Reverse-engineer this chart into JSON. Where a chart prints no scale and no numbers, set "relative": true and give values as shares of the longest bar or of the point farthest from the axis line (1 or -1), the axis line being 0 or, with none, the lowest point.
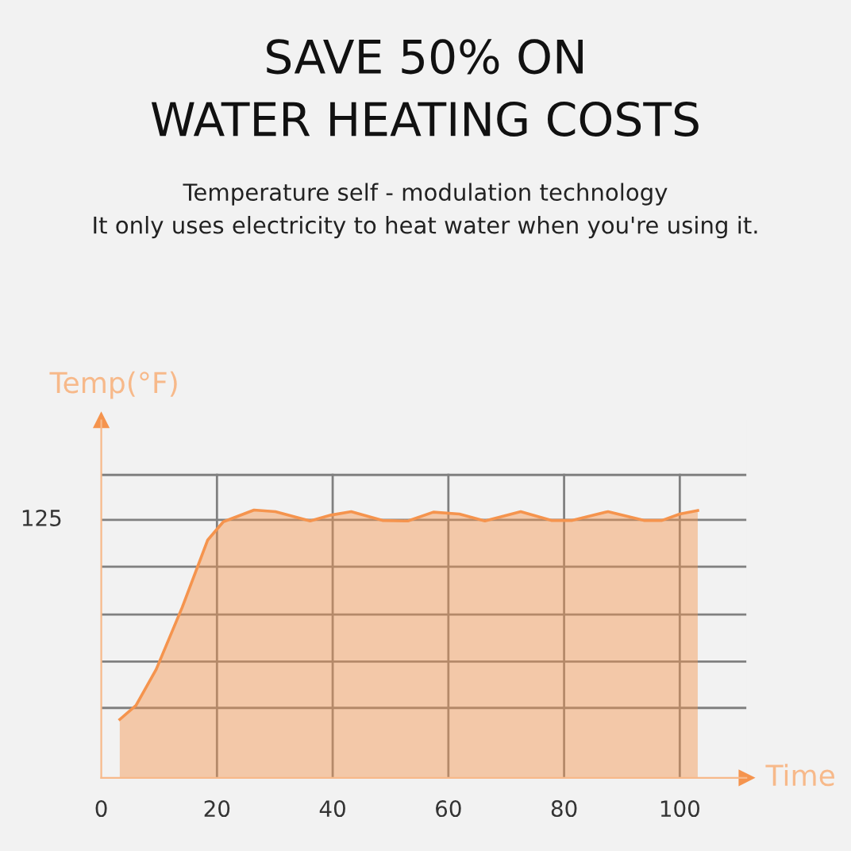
{
  "chart_data": {
    "type": "area",
    "relative": true,
    "title": "SAVE 50% ON\nWATER HEATING COSTS",
    "subtitle": "Temperature self - modulation technology\nIt only uses electricity to heat water when you're using it.",
    "xlabel": "Time",
    "ylabel": "Temp(°F)",
    "x": [
      3.2,
      6.0,
      9.5,
      14.0,
      18.4,
      21.1,
      26.4,
      30.1,
      36.1,
      39.7,
      43.2,
      48.6,
      53.0,
      57.4,
      61.9,
      66.3,
      72.5,
      77.8,
      81.4,
      87.6,
      93.8,
      96.9,
      100.0,
      103.1
    ],
    "series": [
      {
        "color": "#f5944e",
        "values": [
          0.218,
          0.27,
          0.405,
          0.637,
          0.888,
          0.956,
          1.0,
          0.994,
          0.959,
          0.981,
          0.994,
          0.961,
          0.959,
          0.992,
          0.985,
          0.959,
          0.994,
          0.961,
          0.961,
          0.994,
          0.961,
          0.961,
          0.985,
          0.998
        ]
      }
    ],
    "annotations": [
      "125"
    ],
    "xlim": [
      0,
      111.5
    ],
    "xticks": [
      0,
      20,
      40,
      60,
      80,
      100
    ],
    "grid": "x",
    "ref_lines": [
      {
        "axis": "y",
        "value": 1.131,
        "label": null,
        "color": "#808080"
      },
      {
        "axis": "y",
        "value": 0.963,
        "label": null,
        "color": "#808080"
      },
      {
        "axis": "y",
        "value": 0.788,
        "label": null,
        "color": "#808080"
      },
      {
        "axis": "y",
        "value": 0.61,
        "label": null,
        "color": "#808080"
      },
      {
        "axis": "y",
        "value": 0.434,
        "label": null,
        "color": "#808080"
      },
      {
        "axis": "y",
        "value": 0.261,
        "label": null,
        "color": "#808080"
      }
    ]
  }
}
